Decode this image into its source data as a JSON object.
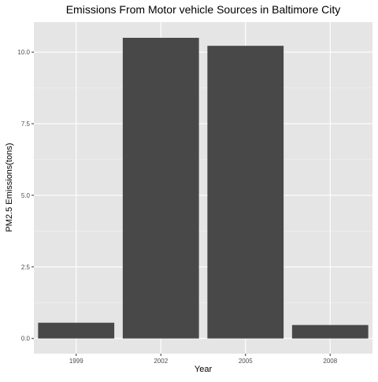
{
  "chart_data": {
    "type": "bar",
    "title": "Emissions From Motor vehicle Sources in Baltimore City",
    "xlabel": "Year",
    "ylabel": "PM2.5 Emissions(tons)",
    "categories": [
      "1999",
      "2002",
      "2005",
      "2008"
    ],
    "values": [
      0.55,
      10.5,
      10.22,
      0.47
    ],
    "ylim": [
      -0.53,
      11.05
    ],
    "yticks": [
      0.0,
      2.5,
      5.0,
      7.5,
      10.0
    ],
    "ytick_labels": [
      "0.0",
      "2.5",
      "5.0",
      "7.5",
      "10.0"
    ],
    "grid": true,
    "legend": "none",
    "colors": {
      "panel_background": "#e5e5e5",
      "grid_major": "#ffffff",
      "grid_minor": "#f2f2f2",
      "bar_fill": "#484848",
      "tick_color": "#333333"
    }
  }
}
